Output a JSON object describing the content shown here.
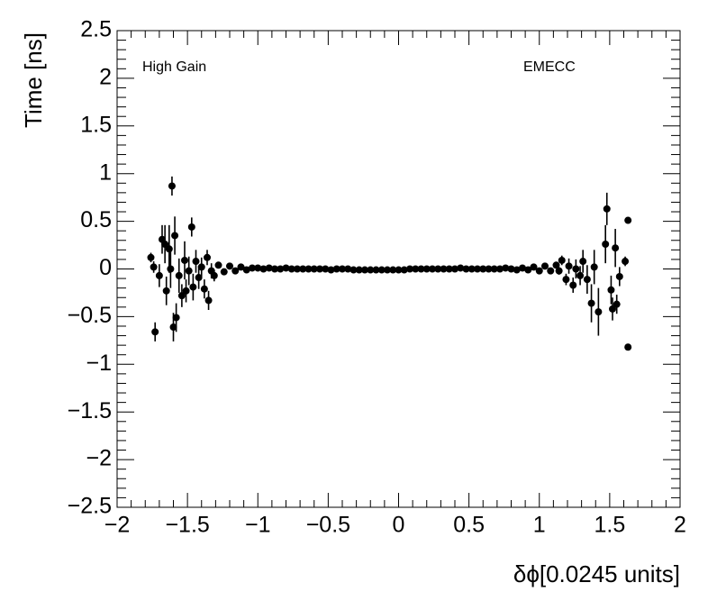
{
  "chart_data": {
    "type": "scatter",
    "xlabel": "δϕ[0.0245 units]",
    "ylabel": "Time [ns]",
    "annotations": [
      "High Gain",
      "EMECC"
    ],
    "xlim": [
      -2,
      2
    ],
    "ylim": [
      -2.5,
      2.5
    ],
    "xticks": [
      {
        "value": -2,
        "label": "−2"
      },
      {
        "value": -1.5,
        "label": "−1.5"
      },
      {
        "value": -1,
        "label": "−1"
      },
      {
        "value": -0.5,
        "label": "−0.5"
      },
      0,
      0.5,
      1,
      1.5,
      2
    ],
    "yticks": [
      {
        "value": -2.5,
        "label": "−2.5"
      },
      {
        "value": -2,
        "label": "−2"
      },
      {
        "value": -1.5,
        "label": "−1.5"
      },
      {
        "value": -1,
        "label": "−1"
      },
      {
        "value": -0.5,
        "label": "−0.5"
      },
      0,
      0.5,
      1,
      1.5,
      2,
      2.5
    ],
    "series": [
      {
        "color": "#000000",
        "x": [
          -1.76,
          -1.74,
          -1.73,
          -1.7,
          -1.68,
          -1.66,
          -1.65,
          -1.63,
          -1.61,
          -1.62,
          -1.6,
          -1.59,
          -1.58,
          -1.56,
          -1.54,
          -1.52,
          -1.51,
          -1.49,
          -1.47,
          -1.46,
          -1.44,
          -1.42,
          -1.4,
          -1.38,
          -1.36,
          -1.35,
          -1.33,
          -1.31,
          -1.28,
          -1.24,
          -1.2,
          -1.16,
          -1.12,
          -1.08,
          -1.04,
          -1,
          -0.96,
          -0.92,
          -0.88,
          -0.84,
          -0.8,
          -0.76,
          -0.72,
          -0.68,
          -0.64,
          -0.6,
          -0.56,
          -0.52,
          -0.48,
          -0.44,
          -0.4,
          -0.36,
          -0.32,
          -0.28,
          -0.24,
          -0.2,
          -0.16,
          -0.12,
          -0.08,
          -0.04,
          0,
          0.04,
          0.08,
          0.12,
          0.16,
          0.2,
          0.24,
          0.28,
          0.32,
          0.36,
          0.4,
          0.44,
          0.48,
          0.52,
          0.56,
          0.6,
          0.64,
          0.68,
          0.72,
          0.76,
          0.8,
          0.84,
          0.88,
          0.92,
          0.96,
          1,
          1.04,
          1.08,
          1.12,
          1.14,
          1.16,
          1.19,
          1.21,
          1.24,
          1.26,
          1.29,
          1.31,
          1.34,
          1.37,
          1.39,
          1.42,
          1.47,
          1.48,
          1.51,
          1.52,
          1.54,
          1.55,
          1.57,
          1.61,
          1.63,
          1.63
        ],
        "y": [
          0.12,
          0.02,
          -0.66,
          -0.07,
          0.31,
          0.26,
          -0.23,
          0.21,
          0.87,
          0,
          -0.61,
          0.35,
          -0.51,
          -0.07,
          -0.28,
          0.09,
          -0.23,
          -0.02,
          0.44,
          -0.19,
          0.08,
          -0.09,
          0.02,
          -0.21,
          0.12,
          -0.33,
          -0.02,
          -0.07,
          0.04,
          -0.03,
          0.03,
          -0.02,
          0.02,
          -0.01,
          0.01,
          0.01,
          0,
          0.01,
          0,
          0,
          0.01,
          0,
          0,
          0,
          0,
          0,
          0,
          0,
          -0.01,
          0,
          0,
          0,
          -0.01,
          -0.01,
          -0.01,
          -0.01,
          -0.01,
          -0.01,
          -0.01,
          -0.01,
          -0.01,
          -0.01,
          0,
          0,
          0,
          0,
          0,
          0,
          0,
          0,
          0,
          0.01,
          0,
          0,
          0,
          0,
          0,
          0,
          0,
          0.01,
          0,
          -0.01,
          0.01,
          -0.01,
          0.02,
          -0.02,
          0.03,
          -0.02,
          0.04,
          -0.02,
          0.09,
          -0.11,
          0.03,
          -0.17,
          0,
          -0.07,
          0.08,
          -0.11,
          -0.36,
          0.02,
          -0.45,
          0.26,
          0.63,
          -0.22,
          -0.42,
          0.22,
          -0.37,
          -0.08,
          0.08,
          0.51,
          -0.82
        ],
        "errors": [
          0.05,
          0.06,
          0.1,
          0.12,
          0.15,
          0.2,
          0.15,
          0.25,
          0.1,
          0.2,
          0.15,
          0.2,
          0.15,
          0.18,
          0.12,
          0.2,
          0.12,
          0.15,
          0.1,
          0.14,
          0.12,
          0.12,
          0.1,
          0.1,
          0.08,
          0.1,
          0.08,
          0.06,
          0.03,
          0.03,
          0.02,
          0.02,
          0.02,
          0.02,
          0.01,
          0.01,
          0.01,
          0.01,
          0.01,
          0.01,
          0.01,
          0.01,
          0.01,
          0.01,
          0.01,
          0.01,
          0.01,
          0.01,
          0.01,
          0.01,
          0.01,
          0.01,
          0.01,
          0.01,
          0.01,
          0.01,
          0.01,
          0.01,
          0.01,
          0.01,
          0.01,
          0.01,
          0.01,
          0.01,
          0.01,
          0.01,
          0.01,
          0.01,
          0.01,
          0.01,
          0.01,
          0.01,
          0.01,
          0.01,
          0.01,
          0.01,
          0.01,
          0.01,
          0.01,
          0.01,
          0.01,
          0.02,
          0.02,
          0.02,
          0.02,
          0.02,
          0.02,
          0.03,
          0.03,
          0.04,
          0.05,
          0.06,
          0.08,
          0.08,
          0.1,
          0.1,
          0.12,
          0.15,
          0.2,
          0.18,
          0.25,
          0.2,
          0.17,
          0.15,
          0.12,
          0.2,
          0.1,
          0.1,
          0.05,
          0.03,
          0.03
        ]
      }
    ]
  }
}
